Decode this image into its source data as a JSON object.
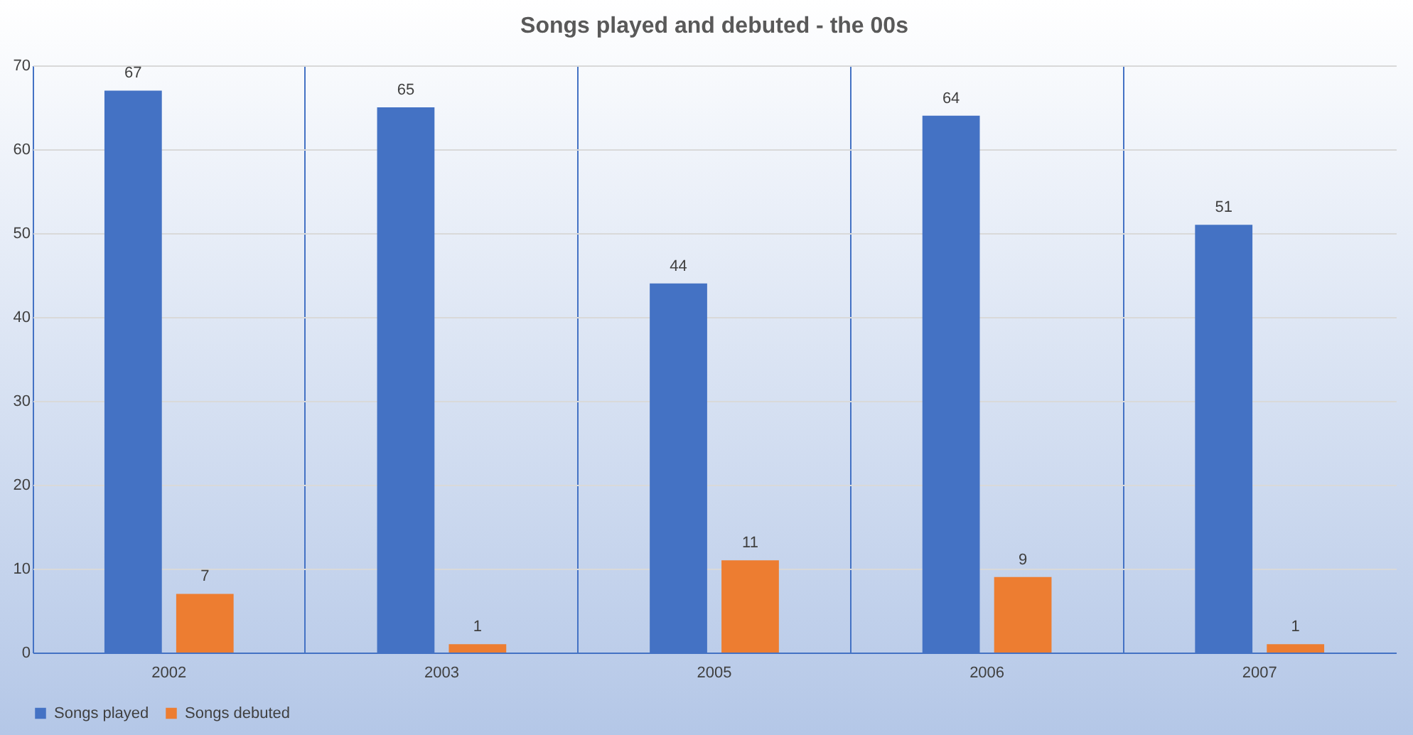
{
  "chart_data": {
    "type": "bar",
    "title": "Songs played and debuted - the 00s",
    "categories": [
      "2002",
      "2003",
      "2005",
      "2006",
      "2007"
    ],
    "series": [
      {
        "name": "Songs played",
        "color": "#4472c4",
        "values": [
          67,
          65,
          44,
          64,
          51
        ]
      },
      {
        "name": "Songs debuted",
        "color": "#ed7d31",
        "values": [
          7,
          1,
          11,
          9,
          1
        ]
      }
    ],
    "ylim": [
      0,
      70
    ],
    "yticks": [
      0,
      10,
      20,
      30,
      40,
      50,
      60,
      70
    ],
    "grid": true,
    "legend": "bottom",
    "data_labels": true
  }
}
